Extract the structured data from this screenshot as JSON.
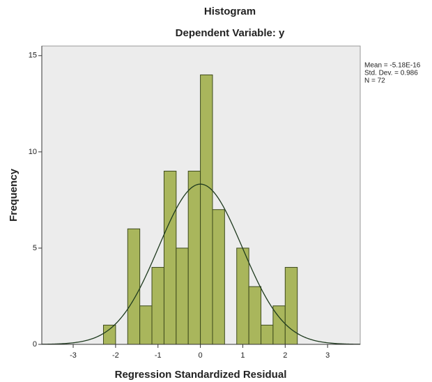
{
  "chart_data": {
    "type": "histogram",
    "title": "Histogram",
    "subtitle": "Dependent Variable: y",
    "x_label": "Regression Standardized Residual",
    "y_label": "Frequency",
    "bins": [
      -2.286,
      -2,
      -1.714,
      -1.429,
      -1.143,
      -0.857,
      -0.571,
      -0.286,
      0,
      0.286,
      0.571,
      0.857,
      1.143,
      1.429,
      1.714,
      2,
      2.286
    ],
    "values": [
      1,
      0,
      6,
      2,
      4,
      9,
      5,
      9,
      14,
      7,
      0,
      5,
      3,
      1,
      2,
      4
    ],
    "color": "#a9b65c",
    "xlim": [
      -3.74,
      3.77
    ],
    "xticks": [
      -3,
      -2,
      -1,
      0,
      1,
      2,
      3
    ],
    "ylim": [
      0,
      15.5
    ],
    "yticks": [
      0,
      5,
      10,
      15
    ],
    "grid": false,
    "stats": [
      {
        "value": -5.18e-16,
        "label": "Mean = -5.18E-16"
      },
      {
        "value": 0.986,
        "label": "Std. Dev. = 0.986"
      },
      {
        "value": 72,
        "label": "N = 72"
      }
    ]
  }
}
